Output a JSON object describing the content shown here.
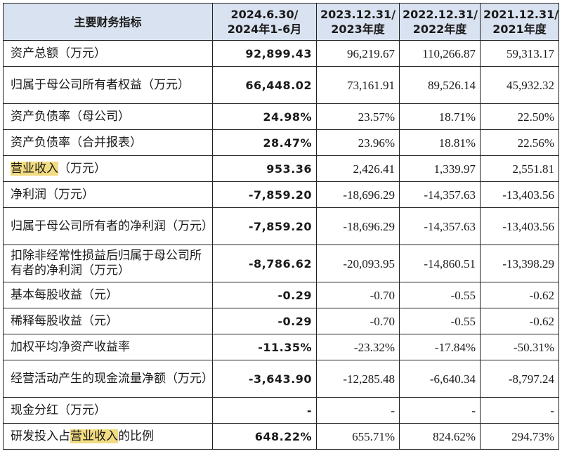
{
  "header": {
    "indicator": "主要财务指标",
    "periods": [
      [
        "2024.6.30/",
        "2024年1-6月"
      ],
      [
        "2023.12.31/",
        "2023年度"
      ],
      [
        "2022.12.31/",
        "2022年度"
      ],
      [
        "2021.12.31/",
        "2021年度"
      ]
    ]
  },
  "highlight_term": "营业收入",
  "rows": [
    {
      "label": "资产总额（万元）",
      "values": [
        "92,899.43",
        "96,219.67",
        "110,266.87",
        "59,313.17"
      ]
    },
    {
      "label": "归属于母公司所有者权益（万元）",
      "values": [
        "66,448.02",
        "73,161.91",
        "89,526.14",
        "45,932.32"
      ]
    },
    {
      "label": "资产负债率（母公司）",
      "values": [
        "24.98%",
        "23.57%",
        "18.71%",
        "22.50%"
      ]
    },
    {
      "label": "资产负债率（合并报表）",
      "values": [
        "28.47%",
        "23.96%",
        "18.81%",
        "22.56%"
      ]
    },
    {
      "label_parts": [
        "营业收入",
        "（万元）"
      ],
      "label_highlight": [
        true,
        false
      ],
      "values": [
        "953.36",
        "2,426.41",
        "1,339.97",
        "2,551.81"
      ]
    },
    {
      "label": "净利润（万元）",
      "values": [
        "-7,859.20",
        "-18,696.29",
        "-14,357.63",
        "-13,403.56"
      ]
    },
    {
      "label": "归属于母公司所有者的净利润（万元）",
      "values": [
        "-7,859.20",
        "-18,696.29",
        "-14,357.63",
        "-13,403.56"
      ]
    },
    {
      "label": "扣除非经常性损益后归属于母公司所有者的净利润（万元）",
      "values": [
        "-8,786.62",
        "-20,093.95",
        "-14,860.51",
        "-13,398.29"
      ]
    },
    {
      "label": "基本每股收益（元）",
      "values": [
        "-0.29",
        "-0.70",
        "-0.55",
        "-0.62"
      ]
    },
    {
      "label": "稀释每股收益（元）",
      "values": [
        "-0.29",
        "-0.70",
        "-0.55",
        "-0.62"
      ]
    },
    {
      "label": "加权平均净资产收益率",
      "values": [
        "-11.35%",
        "-23.32%",
        "-17.84%",
        "-50.31%"
      ]
    },
    {
      "label": "经营活动产生的现金流量净额（万元）",
      "values": [
        "-3,643.90",
        "-12,285.48",
        "-6,640.34",
        "-8,797.24"
      ]
    },
    {
      "label": "现金分红（万元）",
      "values": [
        "-",
        "-",
        "-",
        "-"
      ]
    },
    {
      "label_parts": [
        "研发投入占",
        "营业收入",
        "的比例"
      ],
      "label_highlight": [
        false,
        true,
        false
      ],
      "values": [
        "648.22%",
        "655.71%",
        "824.62%",
        "294.73%"
      ]
    }
  ],
  "colors": {
    "header_bg": "#d9e2f0",
    "highlight": "#f2dc82",
    "border": "#222222"
  }
}
